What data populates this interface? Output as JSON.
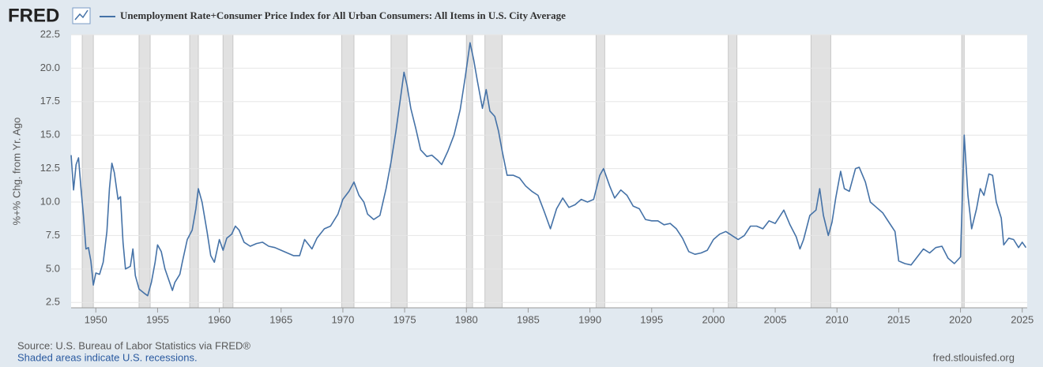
{
  "logo": "FRED",
  "source": "Source: U.S. Bureau of Labor Statistics via FRED®",
  "note": "Shaded areas indicate U.S. recessions.",
  "site": "fred.stlouisfed.org",
  "chart_data": {
    "type": "line",
    "ylabel": "%+% Chg. from Yr. Ago",
    "xlim": [
      1948.0,
      2025.4
    ],
    "ylim": [
      2.1,
      22.5
    ],
    "xticks": [
      1950,
      1955,
      1960,
      1965,
      1970,
      1975,
      1980,
      1985,
      1990,
      1995,
      2000,
      2005,
      2010,
      2015,
      2020,
      2025
    ],
    "yticks": [
      2.5,
      {
        "value": 5,
        "label": "5.0"
      },
      7.5,
      {
        "value": 10,
        "label": "10.0"
      },
      12.5,
      {
        "value": 15,
        "label": "15.0"
      },
      17.5,
      {
        "value": 20,
        "label": "20.0"
      },
      22.5
    ],
    "grid": true,
    "recessions": [
      [
        1948.9,
        1949.8
      ],
      [
        1953.5,
        1954.4
      ],
      [
        1957.6,
        1958.3
      ],
      [
        1960.3,
        1961.1
      ],
      [
        1969.9,
        1970.9
      ],
      [
        1973.9,
        1975.2
      ],
      [
        1980.0,
        1980.5
      ],
      [
        1981.5,
        1982.9
      ],
      [
        1990.5,
        1991.2
      ],
      [
        2001.2,
        2001.9
      ],
      [
        2007.9,
        2009.5
      ],
      [
        2020.1,
        2020.3
      ]
    ],
    "x": [
      1948.0,
      1948.2,
      1948.4,
      1948.6,
      1948.8,
      1949.0,
      1949.2,
      1949.4,
      1949.6,
      1949.8,
      1950.0,
      1950.3,
      1950.6,
      1950.9,
      1951.1,
      1951.3,
      1951.5,
      1951.8,
      1952.0,
      1952.2,
      1952.4,
      1952.8,
      1953.0,
      1953.2,
      1953.5,
      1953.9,
      1954.2,
      1954.5,
      1954.8,
      1955.0,
      1955.3,
      1955.6,
      1955.9,
      1956.2,
      1956.4,
      1956.8,
      1957.0,
      1957.4,
      1957.8,
      1958.1,
      1958.3,
      1958.6,
      1959.0,
      1959.3,
      1959.6,
      1960.0,
      1960.3,
      1960.6,
      1961.0,
      1961.3,
      1961.6,
      1962.0,
      1962.5,
      1963.0,
      1963.5,
      1964.0,
      1964.5,
      1965.0,
      1965.5,
      1966.0,
      1966.5,
      1966.9,
      1967.5,
      1967.9,
      1968.5,
      1969.0,
      1969.6,
      1970.0,
      1970.5,
      1970.9,
      1971.3,
      1971.7,
      1972.0,
      1972.5,
      1973.0,
      1973.5,
      1973.9,
      1974.3,
      1974.7,
      1974.95,
      1975.2,
      1975.5,
      1975.9,
      1976.3,
      1976.8,
      1977.2,
      1977.7,
      1978.0,
      1978.5,
      1979.0,
      1979.5,
      1979.9,
      1980.3,
      1980.6,
      1980.9,
      1981.3,
      1981.6,
      1981.9,
      1982.3,
      1982.6,
      1982.9,
      1983.3,
      1983.8,
      1984.3,
      1984.8,
      1985.3,
      1985.8,
      1986.3,
      1986.8,
      1987.3,
      1987.8,
      1988.3,
      1988.8,
      1989.3,
      1989.8,
      1990.3,
      1990.8,
      1991.1,
      1991.6,
      1992.0,
      1992.5,
      1993.0,
      1993.5,
      1994.0,
      1994.5,
      1995.0,
      1995.5,
      1996.0,
      1996.5,
      1997.0,
      1997.5,
      1998.0,
      1998.5,
      1999.0,
      1999.5,
      2000.0,
      2000.5,
      2001.0,
      2001.5,
      2002.0,
      2002.5,
      2003.0,
      2003.5,
      2004.0,
      2004.5,
      2005.0,
      2005.7,
      2006.2,
      2006.7,
      2007.0,
      2007.3,
      2007.8,
      2008.3,
      2008.6,
      2008.9,
      2009.3,
      2009.6,
      2009.9,
      2010.3,
      2010.6,
      2011.0,
      2011.5,
      2011.8,
      2012.3,
      2012.7,
      2013.2,
      2013.7,
      2014.2,
      2014.7,
      2015.0,
      2015.5,
      2016.0,
      2016.5,
      2017.0,
      2017.5,
      2018.0,
      2018.5,
      2019.0,
      2019.5,
      2020.0,
      2020.3,
      2020.6,
      2020.9,
      2021.3,
      2021.6,
      2021.9,
      2022.3,
      2022.6,
      2022.9,
      2023.3,
      2023.5,
      2023.9,
      2024.3,
      2024.7,
      2025.0,
      2025.3
    ],
    "series": [
      {
        "name": "Unemployment Rate+Consumer Price Index for All Urban Consumers: All Items in U.S. City Average",
        "color": "#4572a7",
        "values": [
          13.5,
          10.9,
          12.8,
          13.3,
          11,
          9,
          6.5,
          6.6,
          5.6,
          3.8,
          4.7,
          4.6,
          5.5,
          7.8,
          11,
          12.9,
          12.2,
          10.2,
          10.4,
          7,
          5.0,
          5.2,
          6.5,
          4.5,
          3.5,
          3.2,
          3.0,
          4.0,
          5.5,
          6.8,
          6.3,
          5.0,
          4.2,
          3.4,
          4.0,
          4.6,
          5.5,
          7.2,
          7.9,
          9.5,
          11.0,
          10.0,
          7.8,
          6.0,
          5.5,
          7.2,
          6.4,
          7.3,
          7.6,
          8.2,
          7.9,
          7.0,
          6.7,
          6.9,
          7.0,
          6.7,
          6.6,
          6.4,
          6.2,
          6.0,
          6.0,
          7.2,
          6.5,
          7.3,
          8.0,
          8.2,
          9.1,
          10.2,
          10.8,
          11.5,
          10.5,
          10.0,
          9.1,
          8.7,
          9.0,
          11.0,
          13.0,
          15.3,
          18.0,
          19.7,
          18.7,
          17.0,
          15.5,
          13.9,
          13.4,
          13.5,
          13.1,
          12.8,
          13.8,
          15.0,
          16.9,
          19.3,
          21.9,
          20.6,
          19.0,
          17.0,
          18.4,
          16.8,
          16.4,
          15.3,
          13.8,
          12.0,
          12.0,
          11.8,
          11.2,
          10.8,
          10.5,
          9.3,
          8.0,
          9.5,
          10.3,
          9.6,
          9.8,
          10.2,
          10.0,
          10.2,
          12.0,
          12.5,
          11.2,
          10.3,
          10.9,
          10.5,
          9.7,
          9.5,
          8.7,
          8.6,
          8.6,
          8.3,
          8.4,
          8.0,
          7.3,
          6.3,
          6.1,
          6.2,
          6.4,
          7.2,
          7.6,
          7.8,
          7.5,
          7.2,
          7.5,
          8.2,
          8.2,
          8.0,
          8.6,
          8.4,
          9.4,
          8.3,
          7.4,
          6.5,
          7.2,
          9.0,
          9.4,
          11.0,
          9.0,
          7.5,
          8.5,
          10.3,
          12.3,
          11.0,
          10.8,
          12.5,
          12.6,
          11.5,
          10.0,
          9.6,
          9.2,
          8.5,
          7.8,
          5.6,
          5.4,
          5.3,
          5.9,
          6.5,
          6.2,
          6.6,
          6.7,
          5.8,
          5.4,
          5.9,
          15.0,
          10.5,
          8.0,
          9.5,
          11.0,
          10.5,
          12.1,
          12.0,
          10.0,
          8.8,
          6.8,
          7.3,
          7.2,
          6.6,
          7.0,
          6.6
        ]
      }
    ]
  }
}
